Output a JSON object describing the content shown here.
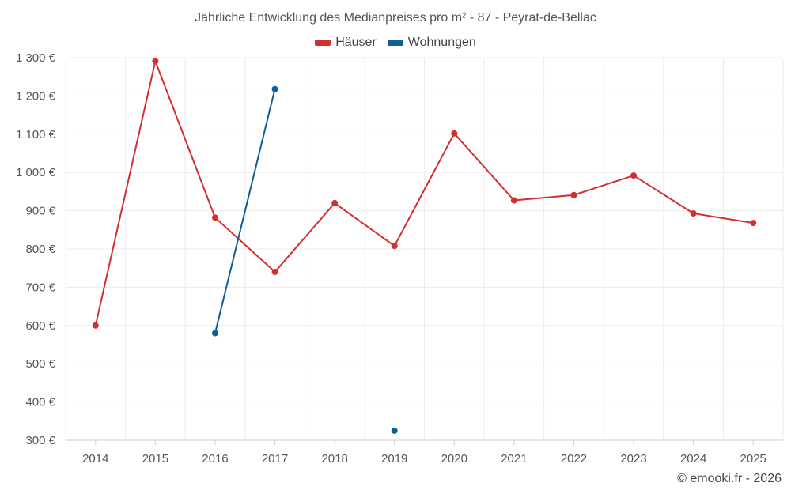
{
  "chart_data": {
    "type": "line",
    "title": "Jährliche Entwicklung des Medianpreises pro m² - 87 - Peyrat-de-Bellac",
    "categories": [
      "2014",
      "2015",
      "2016",
      "2017",
      "2018",
      "2019",
      "2020",
      "2021",
      "2022",
      "2023",
      "2024",
      "2025"
    ],
    "ylim": [
      300,
      1300
    ],
    "yticks": [
      300,
      400,
      500,
      600,
      700,
      800,
      900,
      1000,
      1100,
      1200,
      1300
    ],
    "ytick_labels": [
      "300 €",
      "400 €",
      "500 €",
      "600 €",
      "700 €",
      "800 €",
      "900 €",
      "1 000 €",
      "1 100 €",
      "1 200 €",
      "1 300 €"
    ],
    "legend_position": "top-center",
    "series": [
      {
        "name": "Häuser",
        "color": "#d32f2f",
        "values": [
          600,
          1291,
          882,
          740,
          920,
          808,
          1102,
          927,
          941,
          992,
          893,
          868
        ]
      },
      {
        "name": "Wohnungen",
        "color": "#0d5f96",
        "values": [
          null,
          null,
          580,
          1218,
          null,
          325,
          null,
          null,
          null,
          null,
          null,
          null
        ]
      }
    ]
  },
  "footer": {
    "credit": "© emooki.fr - 2026"
  }
}
